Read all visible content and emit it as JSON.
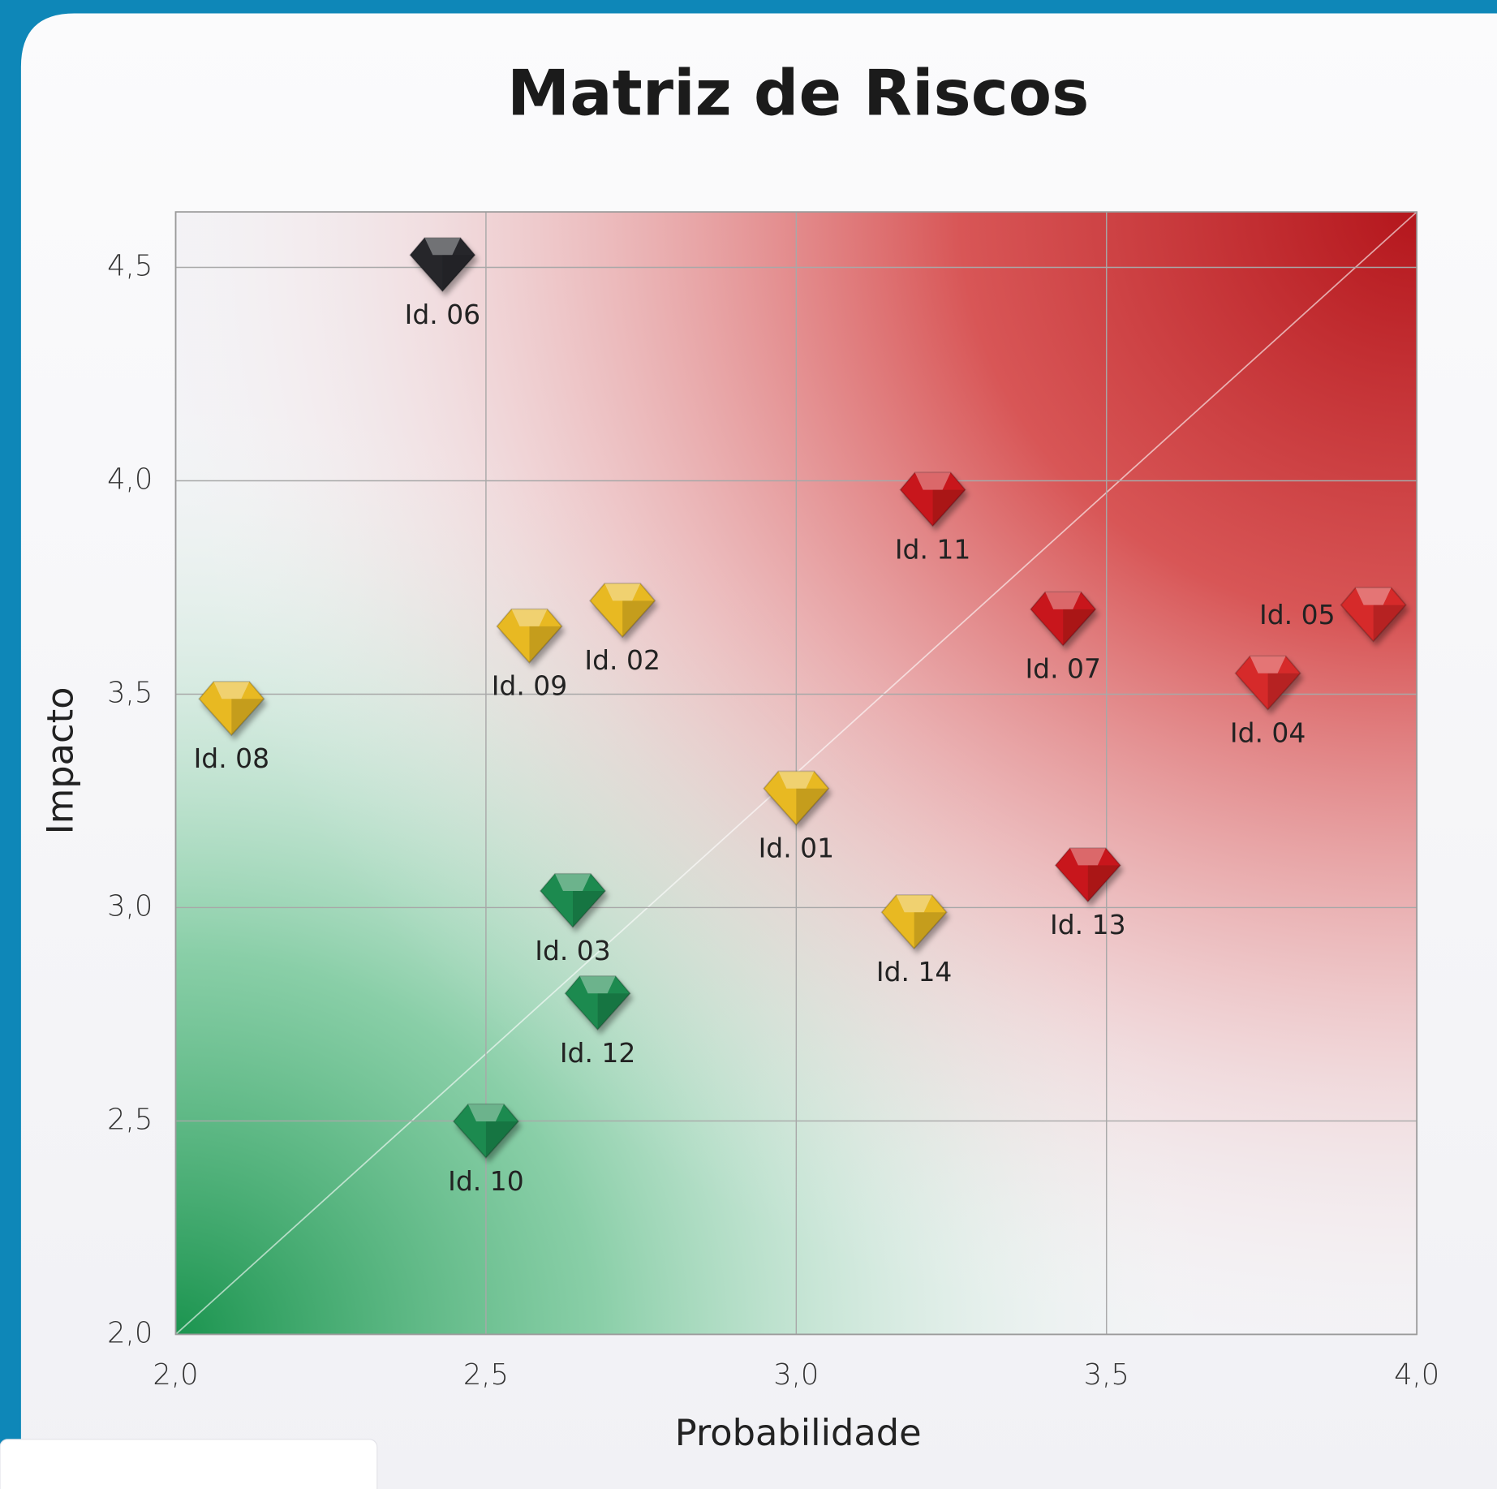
{
  "chart_data": {
    "type": "scatter",
    "title": "Matriz de Riscos",
    "x_label": "Probabilidade",
    "y_label": "Impacto",
    "xlim": [
      2.0,
      4.0
    ],
    "ylim": [
      2.0,
      4.63
    ],
    "xticks": [
      {
        "value": 2.0,
        "label": "2,0"
      },
      {
        "value": 2.5,
        "label": "2,5"
      },
      {
        "value": 3.0,
        "label": "3,0"
      },
      {
        "value": 3.5,
        "label": "3,5"
      },
      {
        "value": 4.0,
        "label": "4,0"
      }
    ],
    "yticks": [
      {
        "value": 2.0,
        "label": "2,0"
      },
      {
        "value": 2.5,
        "label": "2,5"
      },
      {
        "value": 3.0,
        "label": "3,0"
      },
      {
        "value": 3.5,
        "label": "3,5"
      },
      {
        "value": 4.0,
        "label": "4,0"
      },
      {
        "value": 4.5,
        "label": "4,5"
      }
    ],
    "grid": true,
    "points": [
      {
        "label": "Id. 06",
        "x": 2.43,
        "y": 4.52,
        "color": "#26272c"
      },
      {
        "label": "Id. 11",
        "x": 3.22,
        "y": 3.97,
        "color": "#c8161d"
      },
      {
        "label": "Id. 02",
        "x": 2.72,
        "y": 3.71,
        "color": "#e8b923"
      },
      {
        "label": "Id. 09",
        "x": 2.57,
        "y": 3.65,
        "color": "#e8b923"
      },
      {
        "label": "Id. 07",
        "x": 3.43,
        "y": 3.69,
        "color": "#c8161d"
      },
      {
        "label": "Id. 05",
        "x": 3.93,
        "y": 3.7,
        "color": "#d62a2a"
      },
      {
        "label": "Id. 04",
        "x": 3.76,
        "y": 3.54,
        "color": "#d62a2a"
      },
      {
        "label": "Id. 08",
        "x": 2.09,
        "y": 3.48,
        "color": "#e8b923"
      },
      {
        "label": "Id. 01",
        "x": 3.0,
        "y": 3.27,
        "color": "#e8b923"
      },
      {
        "label": "Id. 13",
        "x": 3.47,
        "y": 3.09,
        "color": "#c8161d"
      },
      {
        "label": "Id. 14",
        "x": 3.19,
        "y": 2.98,
        "color": "#e8b923"
      },
      {
        "label": "Id. 03",
        "x": 2.64,
        "y": 3.03,
        "color": "#1e8a4f"
      },
      {
        "label": "Id. 12",
        "x": 2.68,
        "y": 2.79,
        "color": "#1e8a4f"
      },
      {
        "label": "Id. 10",
        "x": 2.5,
        "y": 2.49,
        "color": "#1e8a4f"
      }
    ]
  }
}
